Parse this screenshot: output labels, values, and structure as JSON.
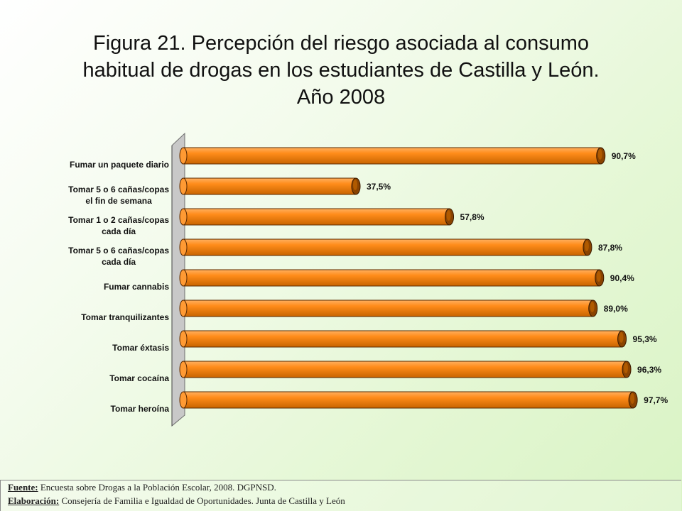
{
  "title": {
    "lines": [
      "Figura 21. Percepción del riesgo asociada al consumo",
      "habitual de drogas en los estudiantes de Castilla y León.",
      "Año 2008"
    ]
  },
  "chart_data": {
    "type": "bar",
    "orientation": "horizontal",
    "categories": [
      [
        "Fumar un paquete diario"
      ],
      [
        "Tomar 5 o 6 cañas/copas",
        "el fin de semana"
      ],
      [
        "Tomar 1 o 2 cañas/copas",
        "cada día"
      ],
      [
        "Tomar 5 o 6 cañas/copas",
        "cada día"
      ],
      [
        "Fumar cannabis"
      ],
      [
        "Tomar tranquilizantes"
      ],
      [
        "Tomar éxtasis"
      ],
      [
        "Tomar cocaína"
      ],
      [
        "Tomar heroína"
      ]
    ],
    "values": [
      90.7,
      37.5,
      57.8,
      87.8,
      90.4,
      89.0,
      95.3,
      96.3,
      97.7
    ],
    "data_labels": [
      "90,7%",
      "37,5%",
      "57,8%",
      "87,8%",
      "90,4%",
      "89,0%",
      "95,3%",
      "96,3%",
      "97,7%"
    ],
    "xlim": [
      0,
      100
    ],
    "grid": false,
    "legend": "none",
    "colors": {
      "bar": "#ff8c1a",
      "bar_dark": "#8a4300",
      "bar_light": "#ffc27a",
      "wall": "#c8c8c8"
    }
  },
  "footer": {
    "source_label": "Fuente:",
    "source_text": "Encuesta sobre Drogas a la Población Escolar, 2008. DGPNSD.",
    "credit_label": "Elaboración:",
    "credit_text": "Consejería de Familia e Igualdad de Oportunidades. Junta de Castilla y León"
  }
}
